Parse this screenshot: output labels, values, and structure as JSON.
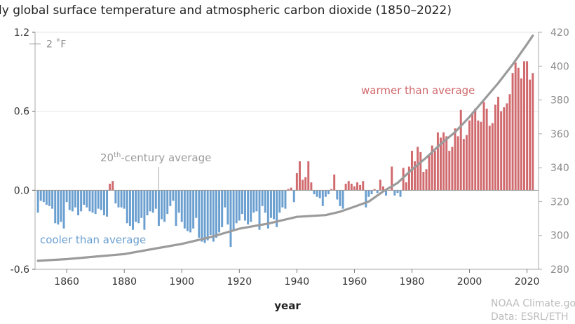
{
  "title": "ly global surface temperature and atmospheric carbon dioxide (1850–2022)",
  "credits": [
    "NOAA Climate.go",
    "Data: ESRL/ETH"
  ],
  "colors": {
    "warm": "#d06a6e",
    "cool": "#6a9fd0",
    "co2_line": "#9b9b9b",
    "axis": "#aaaaaa",
    "average_note": "#9b9b9b"
  },
  "chart_data": {
    "type": "bar",
    "title": "ly global surface temperature and atmospheric carbon dioxide (1850–2022)",
    "xlabel": "year",
    "ylabel": "",
    "ylabel_right": "",
    "xlim": [
      1849,
      2024
    ],
    "ylim": [
      -0.6,
      1.2
    ],
    "ylim_right": [
      280,
      420
    ],
    "x_ticks": [
      1860,
      1880,
      1900,
      1920,
      1940,
      1960,
      1980,
      2000,
      2020
    ],
    "y_ticks": [
      "-0.6",
      "0.0",
      "0.6",
      "1.2"
    ],
    "y_tick_values": [
      -0.6,
      0.0,
      0.6,
      1.2
    ],
    "y_right_ticks": [
      280,
      300,
      320,
      340,
      360,
      380,
      400,
      420
    ],
    "fahrenheit_label": "2 ˚F",
    "fahrenheit_value_c": 1.111,
    "annotations": {
      "warmer": "warmer than average",
      "cooler": "cooler than average",
      "average_prefix": "20",
      "average_sup": "th",
      "average_suffix": "-century average",
      "average_pointer_year": 1892
    },
    "series": [
      {
        "name": "temperature anomaly",
        "type": "bar",
        "x_start": 1850,
        "values": [
          -0.17,
          -0.08,
          -0.09,
          -0.11,
          -0.12,
          -0.14,
          -0.25,
          -0.26,
          -0.24,
          -0.29,
          -0.09,
          -0.15,
          -0.16,
          -0.13,
          -0.19,
          -0.16,
          -0.11,
          -0.13,
          -0.16,
          -0.17,
          -0.18,
          -0.14,
          -0.15,
          -0.19,
          -0.2,
          0.05,
          0.07,
          -0.1,
          -0.13,
          -0.13,
          -0.14,
          -0.25,
          -0.27,
          -0.3,
          -0.24,
          -0.25,
          -0.21,
          -0.3,
          -0.19,
          -0.16,
          -0.17,
          -0.14,
          -0.27,
          -0.22,
          -0.24,
          -0.18,
          -0.12,
          -0.08,
          -0.27,
          -0.17,
          -0.24,
          -0.29,
          -0.31,
          -0.32,
          -0.29,
          -0.21,
          -0.36,
          -0.39,
          -0.4,
          -0.38,
          -0.34,
          -0.39,
          -0.36,
          -0.32,
          -0.28,
          -0.13,
          -0.26,
          -0.43,
          -0.3,
          -0.25,
          -0.23,
          -0.18,
          -0.23,
          -0.26,
          -0.24,
          -0.17,
          -0.16,
          -0.3,
          -0.12,
          -0.17,
          -0.29,
          -0.21,
          -0.22,
          -0.28,
          -0.17,
          -0.13,
          -0.14,
          0.01,
          0.02,
          -0.09,
          0.13,
          0.22,
          0.08,
          0.1,
          0.22,
          0.06,
          -0.03,
          -0.05,
          -0.06,
          -0.12,
          -0.05,
          -0.03,
          0.01,
          0.12,
          -0.07,
          -0.12,
          -0.14,
          0.05,
          0.07,
          0.05,
          0.03,
          0.06,
          0.04,
          0.07,
          -0.13,
          -0.05,
          -0.03,
          0.01,
          -0.02,
          0.08,
          0.03,
          -0.04,
          0.0,
          0.18,
          -0.04,
          -0.02,
          -0.05,
          0.17,
          0.06,
          0.18,
          0.3,
          0.22,
          0.33,
          0.29,
          0.14,
          0.16,
          0.26,
          0.34,
          0.3,
          0.44,
          0.4,
          0.44,
          0.41,
          0.3,
          0.33,
          0.47,
          0.41,
          0.61,
          0.39,
          0.42,
          0.53,
          0.59,
          0.62,
          0.53,
          0.52,
          0.67,
          0.62,
          0.49,
          0.51,
          0.65,
          0.71,
          0.6,
          0.63,
          0.66,
          0.73,
          0.89,
          0.97,
          0.93,
          0.85,
          0.98,
          0.98,
          0.84,
          0.89
        ]
      },
      {
        "name": "carbon dioxide",
        "type": "line",
        "axis": "right",
        "x": [
          1850,
          1860,
          1870,
          1880,
          1890,
          1900,
          1910,
          1920,
          1930,
          1940,
          1950,
          1955,
          1960,
          1965,
          1970,
          1975,
          1980,
          1985,
          1990,
          1995,
          2000,
          2005,
          2010,
          2015,
          2020,
          2022
        ],
        "values": [
          285,
          286,
          287.5,
          289,
          292,
          295,
          299,
          304,
          307,
          311,
          312,
          314,
          317,
          320,
          326,
          331,
          339,
          346,
          354,
          361,
          370,
          380,
          390,
          401,
          413,
          418
        ]
      }
    ]
  }
}
